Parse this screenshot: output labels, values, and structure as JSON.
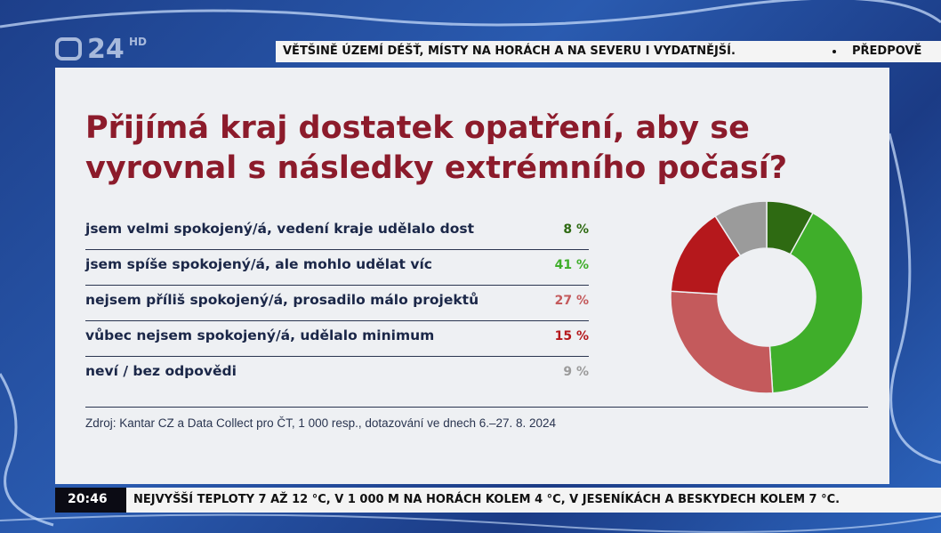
{
  "header": {
    "logo": "24",
    "logo_suffix": "HD",
    "ticker": "VĚTŠINĚ ÚZEMÍ DÉŠŤ, MÍSTY NA HORÁCH A NA SEVERU I VYDATNĚJŠÍ.",
    "ticker_next": "PŘEDPOVĚ"
  },
  "chart_data": {
    "type": "donut",
    "title": "Přijímá kraj dostatek opatření, aby se vyrovnal s následky extrémního počasí?",
    "categories": [
      "jsem velmi spokojený/á, vedení kraje udělalo dost",
      "jsem spíše spokojený/á, ale mohlo udělat víc",
      "nejsem příliš spokojený/á, prosadilo málo projektů",
      "vůbec nejsem spokojený/á, udělalo minimum",
      "neví / bez odpovědi"
    ],
    "values": [
      8,
      41,
      27,
      15,
      9
    ],
    "value_labels": [
      "8 %",
      "41 %",
      "27 %",
      "15 %",
      "9 %"
    ],
    "colors": [
      "#2e6a12",
      "#3fae2a",
      "#c45a5c",
      "#b5181c",
      "#9b9b9b"
    ],
    "source": "Zdroj: Kantar CZ a Data Collect pro ČT, 1 000 resp., dotazování ve dnech 6.–27. 8. 2024"
  },
  "footer": {
    "time": "20:46",
    "ticker": "NEJVYŠŠÍ TEPLOTY 7 AŽ 12 °C, V 1 000 M NA HORÁCH KOLEM 4 °C, V JESENÍKÁCH A BESKYDECH KOLEM 7 °C."
  }
}
